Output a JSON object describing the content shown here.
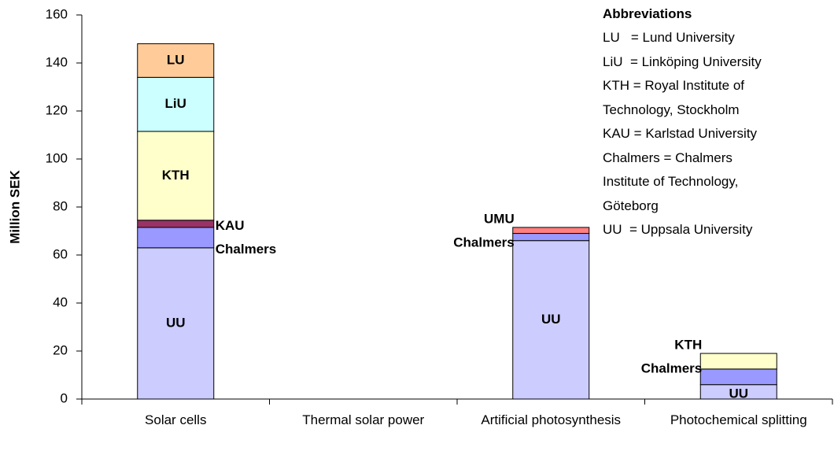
{
  "chart_data": {
    "type": "stacked-bar",
    "y_label": "Million SEK",
    "categories": [
      "Solar cells",
      "Thermal solar power",
      "Artificial photosynthesis",
      "Photochemical splitting"
    ],
    "series": [
      {
        "name": "UU",
        "color": "#ccccff",
        "values": [
          63,
          0,
          66,
          6
        ]
      },
      {
        "name": "Chalmers",
        "color": "#9999ff",
        "values": [
          8.5,
          0,
          3,
          6.5
        ]
      },
      {
        "name": "KAU",
        "color": "#993366",
        "values": [
          3,
          0,
          0,
          0
        ]
      },
      {
        "name": "KTH",
        "color": "#ffffcc",
        "values": [
          37,
          0,
          0,
          6.5
        ]
      },
      {
        "name": "LiU",
        "color": "#ccffff",
        "values": [
          22.5,
          0,
          0,
          0
        ]
      },
      {
        "name": "LU",
        "color": "#ffcc99",
        "values": [
          14,
          0,
          0,
          0
        ]
      },
      {
        "name": "UMU",
        "color": "#ff8080",
        "values": [
          0,
          0,
          2.5,
          0
        ]
      }
    ],
    "ylim": [
      0,
      160
    ],
    "yticks": [
      0,
      20,
      40,
      60,
      80,
      100,
      120,
      140,
      160
    ],
    "abbreviations": {
      "title": "Abbreviations",
      "lines": [
        "LU   = Lund University",
        "LiU  = Linköping University",
        "KTH = Royal Institute of",
        "Technology, Stockholm",
        "KAU = Karlstad University",
        "Chalmers = Chalmers",
        "Institute of Technology,",
        "Göteborg",
        "UU  = Uppsala University"
      ]
    }
  }
}
